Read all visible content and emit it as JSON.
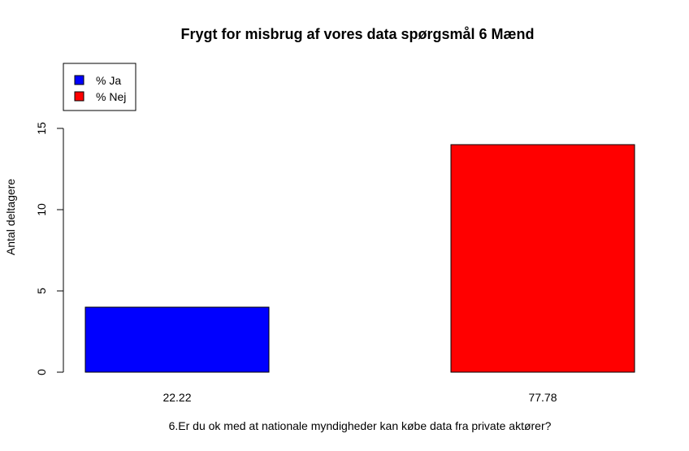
{
  "chart_data": {
    "type": "bar",
    "title": "Frygt for misbrug af vores data spørgsmål 6 Mænd",
    "xlabel": "6.Er du ok med at nationale myndigheder kan købe data fra private aktører?",
    "ylabel": "Antal deltagere",
    "categories": [
      "22.22",
      "77.78"
    ],
    "values": [
      4,
      14
    ],
    "colors": [
      "#0000ff",
      "#ff0000"
    ],
    "yticks": [
      0,
      5,
      10,
      15
    ],
    "ylim": [
      0,
      15
    ],
    "grid": false,
    "legend": {
      "position": "top-left",
      "entries": [
        {
          "label": "% Ja",
          "color": "#0000ff"
        },
        {
          "label": "% Nej",
          "color": "#ff0000"
        }
      ]
    }
  }
}
